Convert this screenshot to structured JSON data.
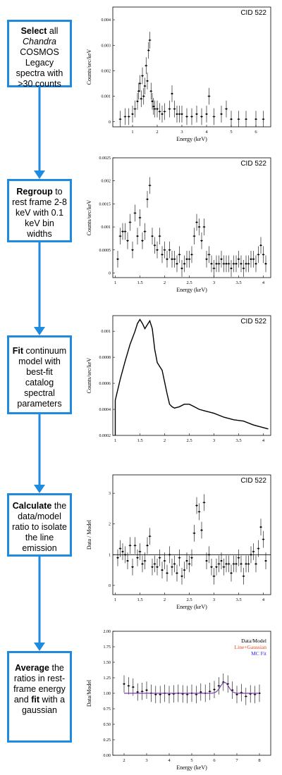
{
  "steps": [
    {
      "bold": "Select",
      "rest": " all",
      "italic": "Chandra",
      "tail": "COSMOS Legacy spectra with >30 counts"
    },
    {
      "bold": "Regroup",
      "rest": " to rest frame 2-8 keV with 0.1 keV bin widths"
    },
    {
      "bold": "Fit",
      "rest": " continuum model with best-fit catalog spectral parameters"
    },
    {
      "bold": "Calculate",
      "rest": " the data/model ratio to isolate the line emission"
    },
    {
      "bold": "Average",
      "rest": " the ratios in rest-frame energy and",
      "bold2": "fit",
      "tail": " with a gaussian"
    }
  ],
  "colors": {
    "arrow": "#1f8be0",
    "box": "#1f8be0",
    "red": "#e8461e",
    "blue": "#2a2aff",
    "purple": "#7a3fb0"
  },
  "chart_data": [
    {
      "type": "scatter",
      "title": "CID 522",
      "xlabel": "Energy (keV)",
      "ylabel": "Counts/sec/keV",
      "xlim": [
        0.2,
        6.6
      ],
      "ylim": [
        -0.0002,
        0.0045
      ],
      "xticks": [
        "1",
        "2",
        "3",
        "4",
        "5",
        "6"
      ],
      "yticks": [
        "0",
        "0.001",
        "0.002",
        "0.003",
        "0.004"
      ],
      "x": [
        0.5,
        0.7,
        0.85,
        1.0,
        1.1,
        1.2,
        1.25,
        1.3,
        1.35,
        1.4,
        1.45,
        1.5,
        1.55,
        1.6,
        1.65,
        1.7,
        1.75,
        1.8,
        1.85,
        1.9,
        2.0,
        2.1,
        2.2,
        2.3,
        2.5,
        2.6,
        2.7,
        2.8,
        2.9,
        3.0,
        3.2,
        3.4,
        3.6,
        3.8,
        4.0,
        4.1,
        4.3,
        4.6,
        4.8,
        5.0,
        5.3,
        5.6,
        6.0,
        6.3
      ],
      "y": [
        0.0001,
        0.0002,
        0.0002,
        0.0003,
        0.0005,
        0.0008,
        0.0012,
        0.0015,
        0.0009,
        0.0018,
        0.001,
        0.0014,
        0.0022,
        0.0016,
        0.0028,
        0.0032,
        0.0012,
        0.0008,
        0.0006,
        0.0005,
        0.0005,
        0.0004,
        0.0003,
        0.0004,
        0.0005,
        0.0011,
        0.0005,
        0.0003,
        0.0003,
        0.0003,
        0.0002,
        0.0002,
        0.0003,
        0.0002,
        0.0003,
        0.001,
        0.0002,
        0.0003,
        0.0005,
        0.0001,
        0.0001,
        0.0001,
        0.0001,
        0.0001
      ]
    },
    {
      "type": "scatter",
      "title": "CID 522",
      "xlabel": "Energy (keV)",
      "ylabel": "Counts/sec/keV",
      "xlim": [
        0.95,
        4.15
      ],
      "ylim": [
        -0.0001,
        0.0025
      ],
      "xticks": [
        "1",
        "1.5",
        "2",
        "2.5",
        "3",
        "3.5",
        "4"
      ],
      "yticks": [
        "0",
        "0.0005",
        "0.001",
        "0.0015",
        "0.002",
        "0.0025"
      ],
      "x": [
        1.05,
        1.1,
        1.15,
        1.2,
        1.25,
        1.3,
        1.35,
        1.4,
        1.45,
        1.5,
        1.55,
        1.6,
        1.65,
        1.7,
        1.75,
        1.8,
        1.85,
        1.9,
        1.95,
        2.0,
        2.05,
        2.1,
        2.15,
        2.2,
        2.25,
        2.3,
        2.35,
        2.4,
        2.45,
        2.5,
        2.55,
        2.6,
        2.65,
        2.7,
        2.75,
        2.8,
        2.85,
        2.9,
        2.95,
        3.0,
        3.05,
        3.1,
        3.15,
        3.2,
        3.25,
        3.3,
        3.35,
        3.4,
        3.45,
        3.5,
        3.55,
        3.6,
        3.65,
        3.7,
        3.75,
        3.8,
        3.85,
        3.9,
        3.95,
        4.0,
        4.05
      ],
      "y": [
        0.0003,
        0.0008,
        0.0009,
        0.0009,
        0.0007,
        0.0011,
        0.0005,
        0.0013,
        0.0008,
        0.0012,
        0.0007,
        0.0009,
        0.0016,
        0.0019,
        0.0008,
        0.0006,
        0.0005,
        0.0008,
        0.0004,
        0.0005,
        0.0003,
        0.0005,
        0.0003,
        0.0003,
        0.0002,
        0.0004,
        0.0001,
        0.0002,
        0.0003,
        0.0003,
        0.0004,
        0.0008,
        0.0011,
        0.001,
        0.0007,
        0.001,
        0.0003,
        0.0004,
        0.0002,
        0.0001,
        0.0002,
        0.0002,
        0.0003,
        0.0002,
        0.0002,
        0.0002,
        0.0001,
        0.0002,
        0.0002,
        0.0003,
        0.0002,
        0.0001,
        0.0002,
        0.0002,
        0.0003,
        0.0003,
        0.0002,
        0.0004,
        0.0006,
        0.0004,
        0.0002
      ]
    },
    {
      "type": "line",
      "title": "CID 522",
      "xlabel": "",
      "ylabel": "Counts/sec/keV",
      "xlim": [
        0.95,
        4.15
      ],
      "ylim": [
        0.0002,
        0.00112
      ],
      "xticks": [
        "1",
        "1.5",
        "2",
        "2.5",
        "3",
        "3.5",
        "4"
      ],
      "yticks": [
        "0.0002",
        "0.0004",
        "0.0006",
        "0.0008",
        "0.001"
      ],
      "x": [
        1.0,
        1.0,
        1.1,
        1.2,
        1.3,
        1.4,
        1.45,
        1.5,
        1.55,
        1.6,
        1.65,
        1.7,
        1.75,
        1.8,
        1.85,
        1.9,
        1.95,
        2.0,
        2.05,
        2.1,
        2.15,
        2.2,
        2.3,
        2.4,
        2.5,
        2.6,
        2.7,
        2.8,
        3.0,
        3.2,
        3.4,
        3.6,
        3.8,
        4.0,
        4.1
      ],
      "y": [
        0.0002,
        0.00047,
        0.00063,
        0.00077,
        0.0009,
        0.001,
        0.00106,
        0.00109,
        0.00106,
        0.00102,
        0.00105,
        0.00108,
        0.00102,
        0.00086,
        0.00076,
        0.00073,
        0.0007,
        0.00061,
        0.00052,
        0.00044,
        0.00042,
        0.00041,
        0.00042,
        0.00044,
        0.00044,
        0.00042,
        0.0004,
        0.00039,
        0.00037,
        0.00034,
        0.00032,
        0.00031,
        0.00028,
        0.00026,
        0.00025
      ]
    },
    {
      "type": "scatter",
      "title": "CID 522",
      "xlabel": "Energy (keV)",
      "ylabel": "Data / Model",
      "xlim": [
        0.95,
        4.15
      ],
      "ylim": [
        -0.3,
        3.6
      ],
      "xticks": [
        "1",
        "1.5",
        "2",
        "2.5",
        "3",
        "3.5",
        "4"
      ],
      "yticks": [
        "0",
        "1",
        "2",
        "3"
      ],
      "reference_line": 1,
      "x": [
        1.05,
        1.1,
        1.15,
        1.2,
        1.25,
        1.3,
        1.35,
        1.4,
        1.45,
        1.5,
        1.55,
        1.6,
        1.65,
        1.7,
        1.75,
        1.8,
        1.85,
        1.9,
        1.95,
        2.0,
        2.05,
        2.1,
        2.15,
        2.2,
        2.25,
        2.3,
        2.35,
        2.4,
        2.45,
        2.5,
        2.55,
        2.6,
        2.65,
        2.7,
        2.75,
        2.8,
        2.85,
        2.9,
        2.95,
        3.0,
        3.05,
        3.1,
        3.15,
        3.2,
        3.25,
        3.3,
        3.35,
        3.4,
        3.45,
        3.5,
        3.55,
        3.6,
        3.65,
        3.7,
        3.75,
        3.8,
        3.85,
        3.9,
        3.95,
        4.0,
        4.05
      ],
      "y": [
        0.9,
        1.2,
        1.1,
        1.0,
        0.8,
        1.3,
        0.6,
        1.3,
        0.9,
        1.1,
        0.7,
        0.8,
        1.3,
        1.6,
        0.6,
        0.7,
        0.6,
        0.9,
        0.5,
        0.8,
        0.4,
        1.0,
        0.6,
        0.7,
        0.4,
        0.9,
        0.3,
        0.5,
        0.8,
        0.7,
        0.9,
        1.7,
        2.6,
        2.4,
        1.8,
        2.7,
        0.8,
        1.0,
        0.6,
        0.3,
        0.6,
        0.7,
        0.8,
        0.6,
        0.7,
        0.7,
        0.4,
        0.7,
        0.7,
        0.9,
        0.7,
        0.3,
        0.7,
        0.7,
        1.0,
        1.1,
        0.7,
        1.2,
        1.9,
        1.5,
        0.8
      ]
    },
    {
      "type": "scatter",
      "title": "",
      "xlabel": "Energy (keV)",
      "ylabel": "Data/Model",
      "xlim": [
        1.5,
        8.5
      ],
      "ylim": [
        0.0,
        2.0
      ],
      "xticks": [
        "2",
        "3",
        "4",
        "5",
        "6",
        "7",
        "8"
      ],
      "yticks": [
        "0.00",
        "0.25",
        "0.50",
        "0.75",
        "1.00",
        "1.25",
        "1.50",
        "1.75",
        "2.00"
      ],
      "legend": [
        "Data/Model",
        "Line+Gaussian",
        "MC Fit"
      ],
      "x": [
        2.0,
        2.2,
        2.4,
        2.6,
        2.8,
        3.0,
        3.2,
        3.4,
        3.6,
        3.8,
        4.0,
        4.2,
        4.4,
        4.6,
        4.8,
        5.0,
        5.2,
        5.4,
        5.6,
        5.8,
        6.0,
        6.2,
        6.4,
        6.6,
        6.8,
        7.0,
        7.2,
        7.4,
        7.6,
        7.8,
        8.0
      ],
      "y": [
        1.15,
        1.12,
        1.1,
        1.02,
        1.03,
        1.05,
        1.0,
        0.98,
        0.98,
        1.0,
        0.98,
        0.99,
        1.0,
        0.99,
        0.98,
        1.0,
        0.98,
        1.02,
        1.0,
        1.03,
        1.06,
        1.12,
        1.18,
        1.15,
        1.05,
        0.98,
        1.01,
        0.95,
        0.99,
        0.98,
        1.0
      ]
    }
  ]
}
